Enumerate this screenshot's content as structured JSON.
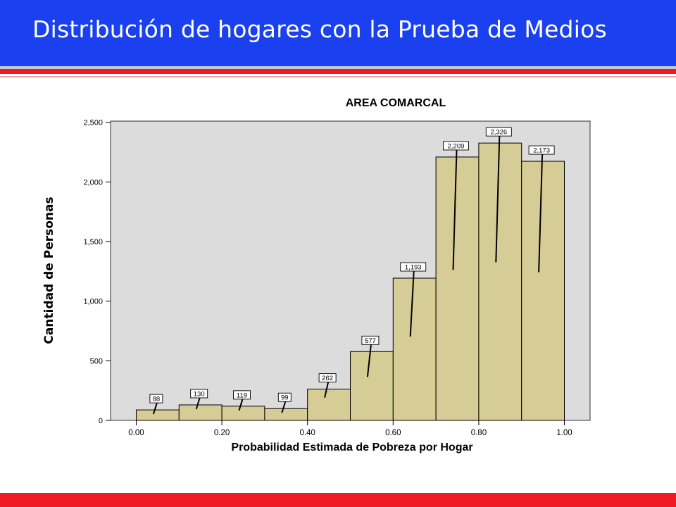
{
  "slide": {
    "title": "Distribución de hogares con la Prueba de Medios",
    "colors": {
      "header": "#1a40f0",
      "accent_red": "#ee1b24",
      "bar_fill": "#d6cc96",
      "plot_bg": "#dcdcdc"
    }
  },
  "chart_data": {
    "type": "bar",
    "title": "AREA COMARCAL",
    "xlabel": "Probabilidad Estimada de Pobreza por Hogar",
    "ylabel": "Cantidad de Personas",
    "bins": [
      [
        0.0,
        0.1
      ],
      [
        0.1,
        0.2
      ],
      [
        0.2,
        0.3
      ],
      [
        0.3,
        0.4
      ],
      [
        0.4,
        0.5
      ],
      [
        0.5,
        0.6
      ],
      [
        0.6,
        0.7
      ],
      [
        0.7,
        0.8
      ],
      [
        0.8,
        0.9
      ],
      [
        0.9,
        1.0
      ]
    ],
    "values": [
      88,
      130,
      119,
      99,
      262,
      577,
      1193,
      2209,
      2326,
      2173
    ],
    "value_labels": [
      "88",
      "130",
      "119",
      "99",
      "262",
      "577",
      "1,193",
      "2,209",
      "2,326",
      "2,173"
    ],
    "xlim": [
      -0.06,
      1.06
    ],
    "ylim": [
      0,
      2510
    ],
    "x_ticks": [
      0.0,
      0.2,
      0.4,
      0.6,
      0.8,
      1.0
    ],
    "x_tick_labels": [
      "0.00",
      "0.20",
      "0.40",
      "0.60",
      "0.80",
      "1.00"
    ],
    "y_ticks": [
      0,
      500,
      1000,
      1500,
      2000,
      2500
    ],
    "y_tick_labels": [
      "0",
      "500",
      "1,000",
      "1,500",
      "2,000",
      "2,500"
    ],
    "grid": false
  }
}
